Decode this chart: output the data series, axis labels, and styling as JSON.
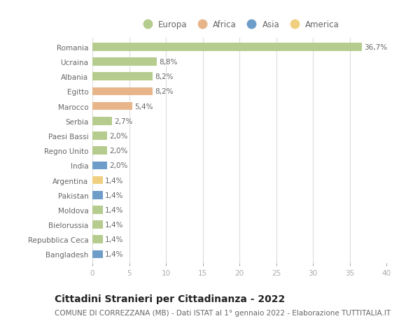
{
  "countries": [
    "Romania",
    "Ucraina",
    "Albania",
    "Egitto",
    "Marocco",
    "Serbia",
    "Paesi Bassi",
    "Regno Unito",
    "India",
    "Argentina",
    "Pakistan",
    "Moldova",
    "Bielorussia",
    "Repubblica Ceca",
    "Bangladesh"
  ],
  "values": [
    36.7,
    8.8,
    8.2,
    8.2,
    5.4,
    2.7,
    2.0,
    2.0,
    2.0,
    1.4,
    1.4,
    1.4,
    1.4,
    1.4,
    1.4
  ],
  "labels": [
    "36,7%",
    "8,8%",
    "8,2%",
    "8,2%",
    "5,4%",
    "2,7%",
    "2,0%",
    "2,0%",
    "2,0%",
    "1,4%",
    "1,4%",
    "1,4%",
    "1,4%",
    "1,4%",
    "1,4%"
  ],
  "continents": [
    "Europa",
    "Europa",
    "Europa",
    "Africa",
    "Africa",
    "Europa",
    "Europa",
    "Europa",
    "Asia",
    "America",
    "Asia",
    "Europa",
    "Europa",
    "Europa",
    "Asia"
  ],
  "colors": {
    "Europa": "#b5cc8e",
    "Africa": "#e8b48a",
    "Asia": "#6e9dc9",
    "America": "#f0d080"
  },
  "legend_order": [
    "Europa",
    "Africa",
    "Asia",
    "America"
  ],
  "title": "Cittadini Stranieri per Cittadinanza - 2022",
  "subtitle": "COMUNE DI CORREZZANA (MB) - Dati ISTAT al 1° gennaio 2022 - Elaborazione TUTTITALIA.IT",
  "xlim": [
    0,
    40
  ],
  "xticks": [
    0,
    5,
    10,
    15,
    20,
    25,
    30,
    35,
    40
  ],
  "background_color": "#ffffff",
  "grid_color": "#dddddd",
  "bar_height": 0.55,
  "title_fontsize": 10,
  "subtitle_fontsize": 7.5,
  "label_fontsize": 7.5,
  "tick_fontsize": 7.5,
  "legend_fontsize": 8.5
}
